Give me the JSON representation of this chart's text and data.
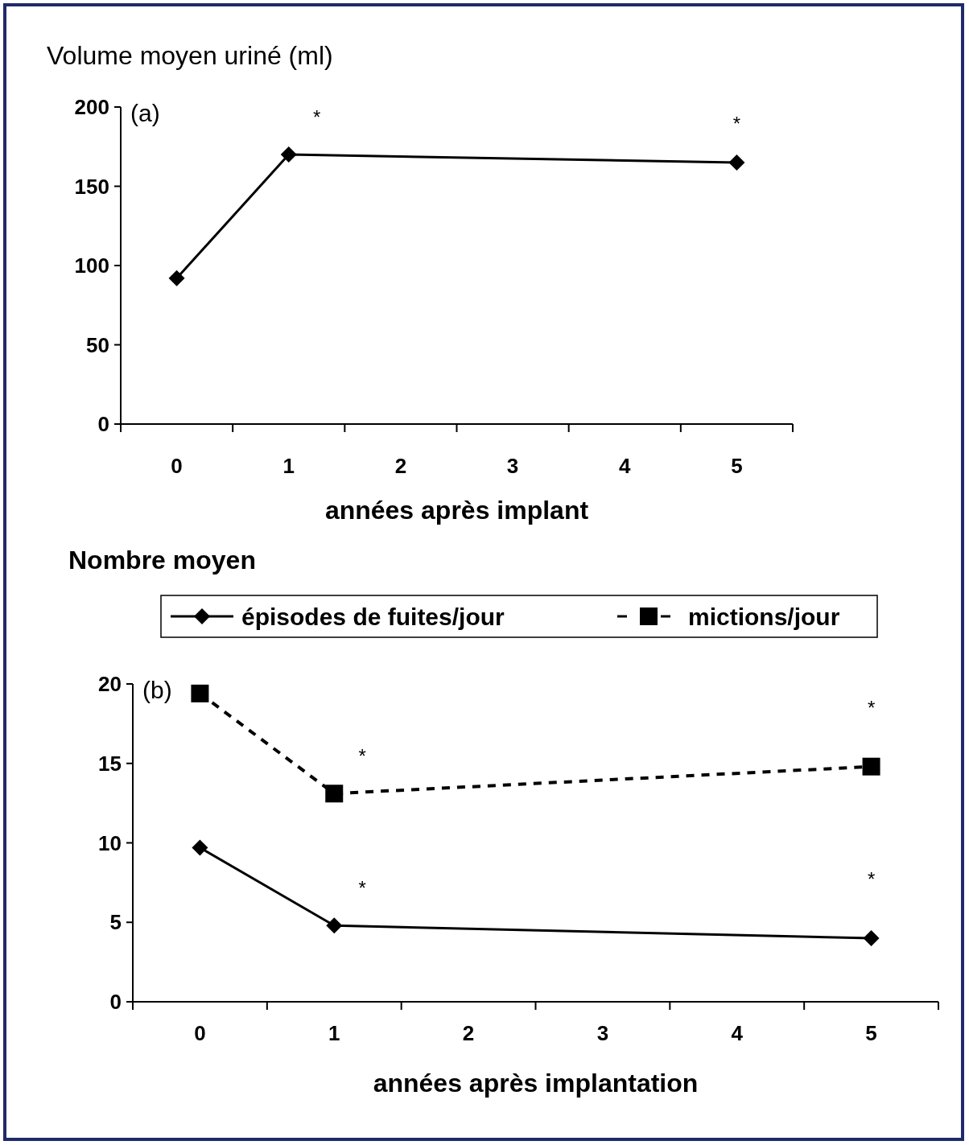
{
  "chart_data": [
    {
      "type": "line",
      "ylabel": "Volume moyen uriné (ml)",
      "xlabel": "années après implant",
      "categories": [
        "0",
        "1",
        "2",
        "3",
        "4",
        "5"
      ],
      "ylim": [
        0,
        200
      ],
      "yticks": [
        0,
        50,
        100,
        150,
        200
      ],
      "series": [
        {
          "color": "#000000",
          "values": [
            92,
            170,
            null,
            null,
            null,
            165
          ],
          "marker": "diamond",
          "line_style": "solid"
        }
      ],
      "annotations": [
        "(a)",
        {
          "text": "*",
          "x": "1",
          "y": 170
        },
        {
          "text": "*",
          "x": "5",
          "y": 165
        }
      ],
      "legend": false,
      "grid": false
    },
    {
      "type": "line",
      "ylabel": "Nombre moyen",
      "xlabel": "années après implantation",
      "categories": [
        "0",
        "1",
        "2",
        "3",
        "4",
        "5"
      ],
      "ylim": [
        0,
        20
      ],
      "yticks": [
        0,
        5,
        10,
        15,
        20
      ],
      "series": [
        {
          "name": "épisodes de fuites/jour",
          "color": "#000000",
          "values": [
            9.7,
            4.8,
            null,
            null,
            null,
            4.0
          ],
          "marker": "diamond",
          "line_style": "solid"
        },
        {
          "name": "mictions/jour",
          "color": "#000000",
          "values": [
            19.4,
            13.1,
            null,
            null,
            null,
            14.8
          ],
          "marker": "square",
          "line_style": "dashed"
        }
      ],
      "annotations": [
        "(b)",
        {
          "text": "*",
          "x": "1",
          "y": 13.1
        },
        {
          "text": "*",
          "x": "5",
          "y": 14.8
        },
        {
          "text": "*",
          "x": "1",
          "y": 4.8
        },
        {
          "text": "*",
          "x": "5",
          "y": 4.0
        }
      ],
      "legend": "top",
      "grid": false
    }
  ]
}
